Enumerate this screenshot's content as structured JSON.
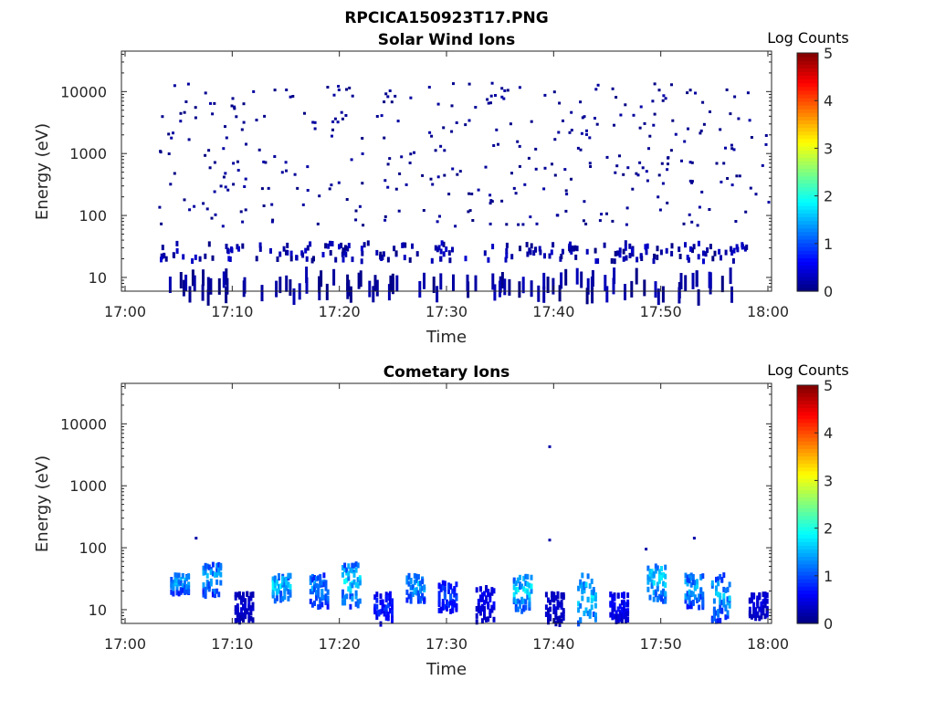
{
  "figure": {
    "title": "RPCICA150923T17.PNG",
    "colormap": [
      "#00007f",
      "#0000ff",
      "#007fff",
      "#00ffff",
      "#7fff7f",
      "#ffff00",
      "#ff7f00",
      "#ff0000",
      "#7f0000"
    ]
  },
  "chart_data": [
    {
      "type": "heatmap",
      "title": "Solar Wind Ions",
      "xlabel": "Time",
      "ylabel": "Energy (eV)",
      "xlim": [
        "17:00",
        "18:00"
      ],
      "x_ticks": [
        "17:00",
        "17:10",
        "17:20",
        "17:30",
        "17:40",
        "17:50",
        "18:00"
      ],
      "ylim": [
        6,
        45000
      ],
      "yscale": "log",
      "y_ticks": [
        {
          "value": 10,
          "label": "10"
        },
        {
          "value": 100,
          "label": "100"
        },
        {
          "value": 1000,
          "label": "1000"
        },
        {
          "value": 10000,
          "label": "10000"
        }
      ],
      "colorbar": {
        "title": "Log Counts",
        "range": [
          0,
          5
        ],
        "ticks": [
          "0",
          "1",
          "2",
          "3",
          "4",
          "5"
        ]
      },
      "data_description_bands": [
        {
          "energy_range_eV": [
            20,
            40
          ],
          "time_range": [
            "17:03",
            "17:58"
          ],
          "log_counts": [
            0,
            0.4
          ],
          "density": "medium"
        },
        {
          "energy_range_eV": [
            6,
            15
          ],
          "time_range": [
            "17:03",
            "17:58"
          ],
          "log_counts": [
            0,
            0.3
          ],
          "density": "sparse"
        },
        {
          "energy_range_eV": [
            70,
            15000
          ],
          "time_range": [
            "17:03",
            "18:00"
          ],
          "log_counts": [
            0,
            0.2
          ],
          "density": "scattered points"
        }
      ]
    },
    {
      "type": "heatmap",
      "title": "Cometary Ions",
      "xlabel": "Time",
      "ylabel": "Energy (eV)",
      "xlim": [
        "17:00",
        "18:00"
      ],
      "x_ticks": [
        "17:00",
        "17:10",
        "17:20",
        "17:30",
        "17:40",
        "17:50",
        "18:00"
      ],
      "ylim": [
        6,
        45000
      ],
      "yscale": "log",
      "y_ticks": [
        {
          "value": 10,
          "label": "10"
        },
        {
          "value": 100,
          "label": "100"
        },
        {
          "value": 1000,
          "label": "1000"
        },
        {
          "value": 10000,
          "label": "10000"
        }
      ],
      "colorbar": {
        "title": "Log Counts",
        "range": [
          0,
          5
        ],
        "ticks": [
          "0",
          "1",
          "2",
          "3",
          "4",
          "5"
        ]
      },
      "clusters": [
        {
          "time": "17:05",
          "energy_range_eV": [
            20,
            40
          ],
          "peak_log_counts": 1.8
        },
        {
          "time": "17:08",
          "energy_range_eV": [
            18,
            60
          ],
          "peak_log_counts": 1.8
        },
        {
          "time": "17:11",
          "energy_range_eV": [
            7,
            20
          ],
          "peak_log_counts": 0.5
        },
        {
          "time": "17:14.5",
          "energy_range_eV": [
            15,
            40
          ],
          "peak_log_counts": 2.0
        },
        {
          "time": "17:18",
          "energy_range_eV": [
            12,
            40
          ],
          "peak_log_counts": 1.6
        },
        {
          "time": "17:21",
          "energy_range_eV": [
            12,
            60
          ],
          "peak_log_counts": 2.0
        },
        {
          "time": "17:24",
          "energy_range_eV": [
            6,
            20
          ],
          "peak_log_counts": 1.0
        },
        {
          "time": "17:27",
          "energy_range_eV": [
            15,
            40
          ],
          "peak_log_counts": 1.8
        },
        {
          "time": "17:30",
          "energy_range_eV": [
            10,
            30
          ],
          "peak_log_counts": 1.2
        },
        {
          "time": "17:33.5",
          "energy_range_eV": [
            7,
            25
          ],
          "peak_log_counts": 0.7
        },
        {
          "time": "17:37",
          "energy_range_eV": [
            10,
            40
          ],
          "peak_log_counts": 2.0
        },
        {
          "time": "17:40",
          "energy_range_eV": [
            6,
            20
          ],
          "peak_log_counts": 0.5
        },
        {
          "time": "17:43",
          "energy_range_eV": [
            6,
            40
          ],
          "peak_log_counts": 2.0
        },
        {
          "time": "17:46",
          "energy_range_eV": [
            7,
            20
          ],
          "peak_log_counts": 0.8
        },
        {
          "time": "17:49.5",
          "energy_range_eV": [
            15,
            60
          ],
          "peak_log_counts": 2.2
        },
        {
          "time": "17:53",
          "energy_range_eV": [
            12,
            40
          ],
          "peak_log_counts": 1.8
        },
        {
          "time": "17:55.5",
          "energy_range_eV": [
            7,
            40
          ],
          "peak_log_counts": 1.8
        },
        {
          "time": "17:59",
          "energy_range_eV": [
            8,
            20
          ],
          "peak_log_counts": 0.6
        }
      ],
      "isolated_points": [
        {
          "time": "17:06.5",
          "energy_eV": 150,
          "log_counts": 0.2
        },
        {
          "time": "17:39.5",
          "energy_eV": 4500,
          "log_counts": 0.2
        },
        {
          "time": "17:39.5",
          "energy_eV": 140,
          "log_counts": 0.2
        },
        {
          "time": "17:48.5",
          "energy_eV": 100,
          "log_counts": 0.2
        },
        {
          "time": "17:53",
          "energy_eV": 150,
          "log_counts": 0.2
        }
      ]
    }
  ]
}
